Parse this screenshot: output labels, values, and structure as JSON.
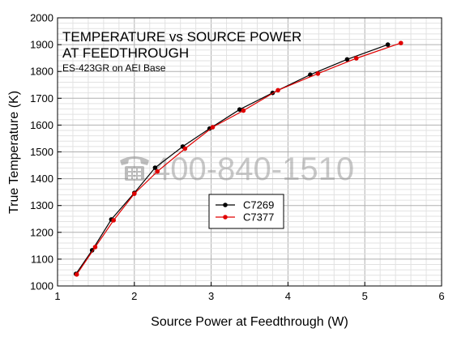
{
  "chart_data": {
    "type": "line",
    "title_line1": "TEMPERATURE vs SOURCE POWER",
    "title_line2": "AT FEEDTHROUGH",
    "subtitle": "ES-423GR on AEI Base",
    "xlabel": "Source Power at Feedthrough (W)",
    "ylabel": "True Temperature (K)",
    "xlim": [
      1,
      6
    ],
    "ylim": [
      1000,
      2000
    ],
    "xticks": [
      "1",
      "2",
      "3",
      "4",
      "5",
      "6"
    ],
    "yticks": [
      "1000",
      "1100",
      "1200",
      "1300",
      "1400",
      "1500",
      "1600",
      "1700",
      "1800",
      "1900",
      "2000"
    ],
    "grid": true,
    "legend_position": "center",
    "series": [
      {
        "name": "C7269",
        "color": "#000000",
        "x": [
          1.24,
          1.45,
          1.7,
          2.0,
          2.27,
          2.63,
          2.98,
          3.37,
          3.8,
          4.29,
          4.77,
          5.3
        ],
        "y": [
          1045,
          1133,
          1248,
          1347,
          1441,
          1520,
          1587,
          1658,
          1720,
          1788,
          1845,
          1900
        ]
      },
      {
        "name": "C7377",
        "color": "#e00000",
        "x": [
          1.25,
          1.49,
          1.73,
          2.0,
          2.3,
          2.66,
          3.02,
          3.42,
          3.87,
          4.39,
          4.89,
          5.47
        ],
        "y": [
          1043,
          1145,
          1245,
          1344,
          1427,
          1512,
          1592,
          1654,
          1730,
          1792,
          1849,
          1906
        ]
      }
    ]
  },
  "watermark": {
    "text": "400-840-1510",
    "icon": "phone-icon"
  }
}
